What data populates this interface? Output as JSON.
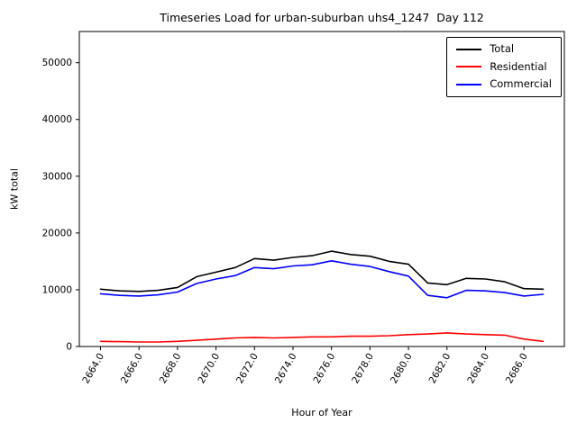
{
  "title": "Timeseries Load for urban-suburban uhs4_1247  Day 112",
  "chart_data": {
    "type": "line",
    "title": "Timeseries Load for urban-suburban uhs4_1247  Day 112",
    "xlabel": "Hour of Year",
    "ylabel": "kW total",
    "x": [
      2664,
      2665,
      2666,
      2667,
      2668,
      2669,
      2670,
      2671,
      2672,
      2673,
      2674,
      2675,
      2676,
      2677,
      2678,
      2679,
      2680,
      2681,
      2682,
      2683,
      2684,
      2685,
      2686,
      2687
    ],
    "series": [
      {
        "name": "Total",
        "color": "#000000",
        "values": [
          10100,
          9800,
          9700,
          9900,
          10400,
          12300,
          13100,
          13900,
          15500,
          15200,
          15700,
          16000,
          16800,
          16200,
          15900,
          15000,
          14500,
          11200,
          10900,
          12000,
          11900,
          11400,
          10200,
          10100
        ]
      },
      {
        "name": "Residential",
        "color": "#ff0000",
        "values": [
          900,
          850,
          800,
          800,
          900,
          1100,
          1300,
          1500,
          1600,
          1500,
          1600,
          1700,
          1700,
          1800,
          1800,
          1900,
          2100,
          2200,
          2400,
          2200,
          2100,
          2000,
          1300,
          900
        ]
      },
      {
        "name": "Commercial",
        "color": "#0000ff",
        "values": [
          9300,
          9000,
          8900,
          9100,
          9600,
          11100,
          11900,
          12500,
          13900,
          13700,
          14200,
          14400,
          15100,
          14500,
          14100,
          13200,
          12400,
          9000,
          8600,
          9900,
          9800,
          9500,
          8900,
          9200
        ]
      }
    ],
    "xlim": [
      2662.9,
      2688.1
    ],
    "ylim": [
      0,
      55500
    ],
    "xticks": [
      2664,
      2666,
      2668,
      2670,
      2672,
      2674,
      2676,
      2678,
      2680,
      2682,
      2684,
      2686
    ],
    "xtick_labels": [
      "2664.0",
      "2666.0",
      "2668.0",
      "2670.0",
      "2672.0",
      "2674.0",
      "2676.0",
      "2678.0",
      "2680.0",
      "2682.0",
      "2684.0",
      "2686.0"
    ],
    "yticks": [
      0,
      10000,
      20000,
      30000,
      40000,
      50000
    ],
    "ytick_labels": [
      "0",
      "10000",
      "20000",
      "30000",
      "40000",
      "50000"
    ],
    "grid": false,
    "legend": {
      "position": "upper right",
      "entries": [
        "Total",
        "Residential",
        "Commercial"
      ]
    }
  }
}
